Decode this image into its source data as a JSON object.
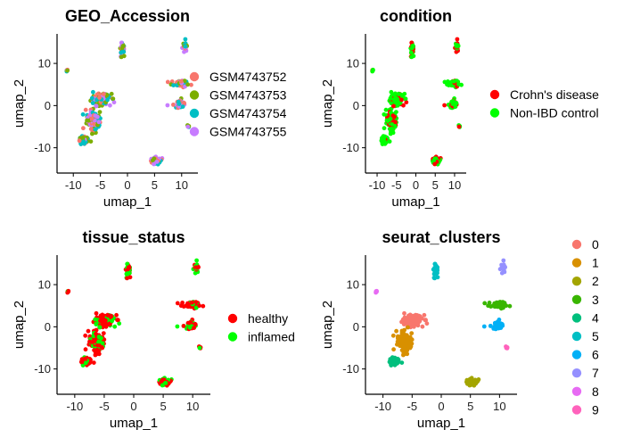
{
  "chart_data": [
    {
      "type": "scatter",
      "title": "GEO_Accession",
      "xlabel": "umap_1",
      "ylabel": "umap_2",
      "xlim": [
        -13,
        13
      ],
      "ylim": [
        -16,
        17
      ],
      "xticks": [
        -10,
        -5,
        0,
        5,
        10
      ],
      "yticks": [
        -10,
        0,
        10
      ],
      "grid": false,
      "legend_position": "right",
      "series": [
        {
          "name": "GSM4743752",
          "color": "#F8766D"
        },
        {
          "name": "GSM4743753",
          "color": "#7CAE00"
        },
        {
          "name": "GSM4743754",
          "color": "#00BFC4"
        },
        {
          "name": "GSM4743755",
          "color": "#C77CFF"
        }
      ]
    },
    {
      "type": "scatter",
      "title": "condition",
      "xlabel": "umap_1",
      "ylabel": "umap_2",
      "xlim": [
        -13,
        13
      ],
      "ylim": [
        -16,
        17
      ],
      "xticks": [
        -10,
        -5,
        0,
        5,
        10
      ],
      "yticks": [
        -10,
        0,
        10
      ],
      "grid": false,
      "legend_position": "right",
      "series": [
        {
          "name": "Crohn's disease",
          "color": "#FF0000"
        },
        {
          "name": "Non-IBD control",
          "color": "#00FF00"
        }
      ]
    },
    {
      "type": "scatter",
      "title": "tissue_status",
      "xlabel": "umap_1",
      "ylabel": "umap_2",
      "xlim": [
        -13,
        13
      ],
      "ylim": [
        -16,
        17
      ],
      "xticks": [
        -10,
        -5,
        0,
        5,
        10
      ],
      "yticks": [
        -10,
        0,
        10
      ],
      "grid": false,
      "legend_position": "right",
      "series": [
        {
          "name": "healthy",
          "color": "#FF0000"
        },
        {
          "name": "inflamed",
          "color": "#00FF00"
        }
      ]
    },
    {
      "type": "scatter",
      "title": "seurat_clusters",
      "xlabel": "umap_1",
      "ylabel": "umap_2",
      "xlim": [
        -13,
        13
      ],
      "ylim": [
        -16,
        17
      ],
      "xticks": [
        -10,
        -5,
        0,
        5,
        10
      ],
      "yticks": [
        -10,
        0,
        10
      ],
      "grid": false,
      "legend_position": "right",
      "series": [
        {
          "name": "0",
          "color": "#F8766D"
        },
        {
          "name": "1",
          "color": "#D89000"
        },
        {
          "name": "2",
          "color": "#A3A500"
        },
        {
          "name": "3",
          "color": "#39B600"
        },
        {
          "name": "4",
          "color": "#00BF7D"
        },
        {
          "name": "5",
          "color": "#00BFC4"
        },
        {
          "name": "6",
          "color": "#00B0F6"
        },
        {
          "name": "7",
          "color": "#9590FF"
        },
        {
          "name": "8",
          "color": "#E76BF3"
        },
        {
          "name": "9",
          "color": "#FF62BC"
        }
      ]
    }
  ]
}
